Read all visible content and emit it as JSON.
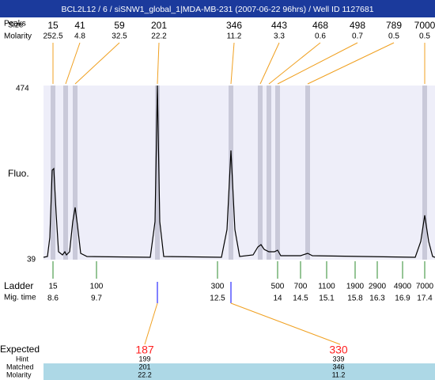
{
  "header": {
    "title": "BCL2L12 / 6 / siSNW1_global_1|MDA-MB-231 (2007-06-22 96hrs) / Well ID 1127681"
  },
  "peaks": {
    "peaks_label": "Peaks",
    "size_label": "Size",
    "molarity_label": "Molarity",
    "sizes": [
      15,
      41,
      59,
      201,
      346,
      443,
      468,
      498,
      789,
      7000
    ],
    "molarities": [
      252.5,
      4.8,
      32.5,
      22.2,
      11.2,
      3.3,
      0.6,
      0.7,
      0.5,
      0.5
    ]
  },
  "plot": {
    "y_label": "Fluo.",
    "ymax": 474,
    "ymin": 39
  },
  "ladder": {
    "label": "Ladder",
    "mig_label": "Mig. time",
    "sizes": [
      15,
      100,
      300,
      500,
      700,
      1100,
      1900,
      2900,
      4900,
      7000
    ],
    "mig_times": [
      8.6,
      9.7,
      12.5,
      14,
      14.5,
      15.1,
      15.8,
      16.3,
      16.9,
      17.4
    ]
  },
  "expected": {
    "label": "Expected",
    "hint_label": "Hint",
    "matched_label": "Matched",
    "molarity_label": "Molarity",
    "expected": [
      187,
      330
    ],
    "hint": [
      199,
      339
    ],
    "matched": [
      201,
      346
    ],
    "molarity": [
      22.2,
      11.2
    ]
  }
}
